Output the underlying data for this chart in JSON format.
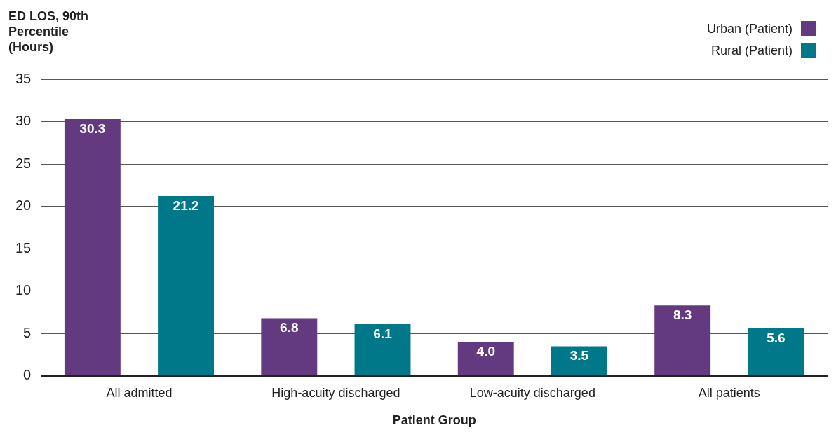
{
  "chart_data": {
    "type": "bar",
    "xlabel": "Patient Group",
    "ylabel": "ED LOS, 90th Percentile (Hours)",
    "categories": [
      "All admitted",
      "High-acuity discharged",
      "Low-acuity discharged",
      "All patients"
    ],
    "series": [
      {
        "name": "Urban (Patient)",
        "color": "#633a7f",
        "values": [
          30.3,
          6.8,
          4.0,
          8.3
        ]
      },
      {
        "name": "Rural (Patient)",
        "color": "#00788a",
        "values": [
          21.2,
          6.1,
          3.5,
          5.6
        ]
      }
    ],
    "value_labels": [
      [
        "30.3",
        "6.8",
        "4.0",
        "8.3"
      ],
      [
        "21.2",
        "6.1",
        "3.5",
        "5.6"
      ]
    ],
    "ylim": [
      0,
      35
    ],
    "yticks": [
      0,
      5,
      10,
      15,
      20,
      25,
      30,
      35
    ],
    "grid": "y",
    "legend": "top right"
  }
}
